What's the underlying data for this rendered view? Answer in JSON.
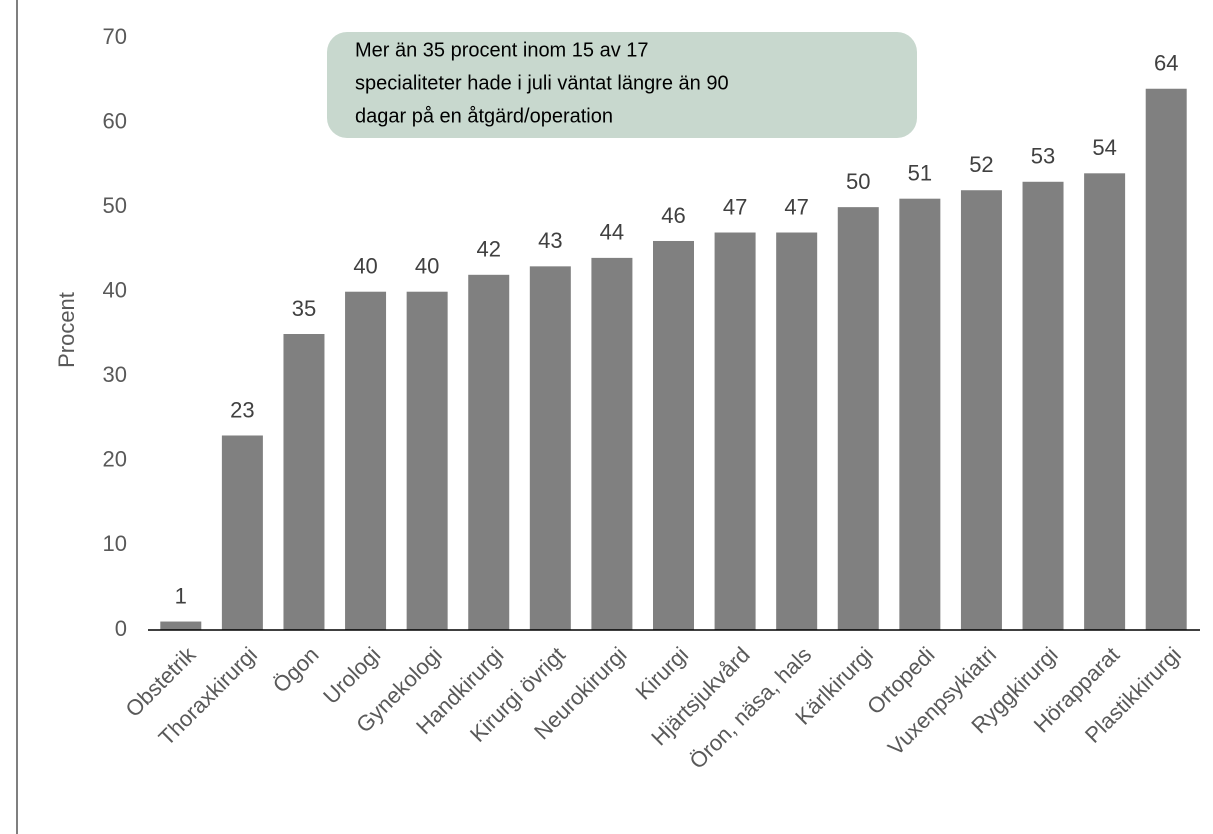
{
  "chart_data": {
    "type": "bar",
    "ylabel": "Procent",
    "annotation": [
      "Mer än 35 procent inom 15 av 17",
      "specialiteter hade i juli väntat längre än 90",
      "dagar på en åtgärd/operation"
    ],
    "categories": [
      "Obstetrik",
      "Thoraxkirurgi",
      "Ögon",
      "Urologi",
      "Gynekologi",
      "Handkirurgi",
      "Kirurgi övrigt",
      "Neurokirurgi",
      "Kirurgi",
      "Hjärtsjukvård",
      "Öron, näsa, hals",
      "Kärlkirurgi",
      "Ortopedi",
      "Vuxenpsykiatri",
      "Ryggkirurgi",
      "Hörapparat",
      "Plastikkirurgi"
    ],
    "values": [
      1,
      23,
      35,
      40,
      40,
      42,
      43,
      44,
      46,
      47,
      47,
      50,
      51,
      52,
      53,
      54,
      64
    ],
    "color": "#808080",
    "ylim": [
      0,
      70
    ],
    "yticks": [
      0,
      10,
      20,
      30,
      40,
      50,
      60,
      70
    ],
    "grid": false
  }
}
